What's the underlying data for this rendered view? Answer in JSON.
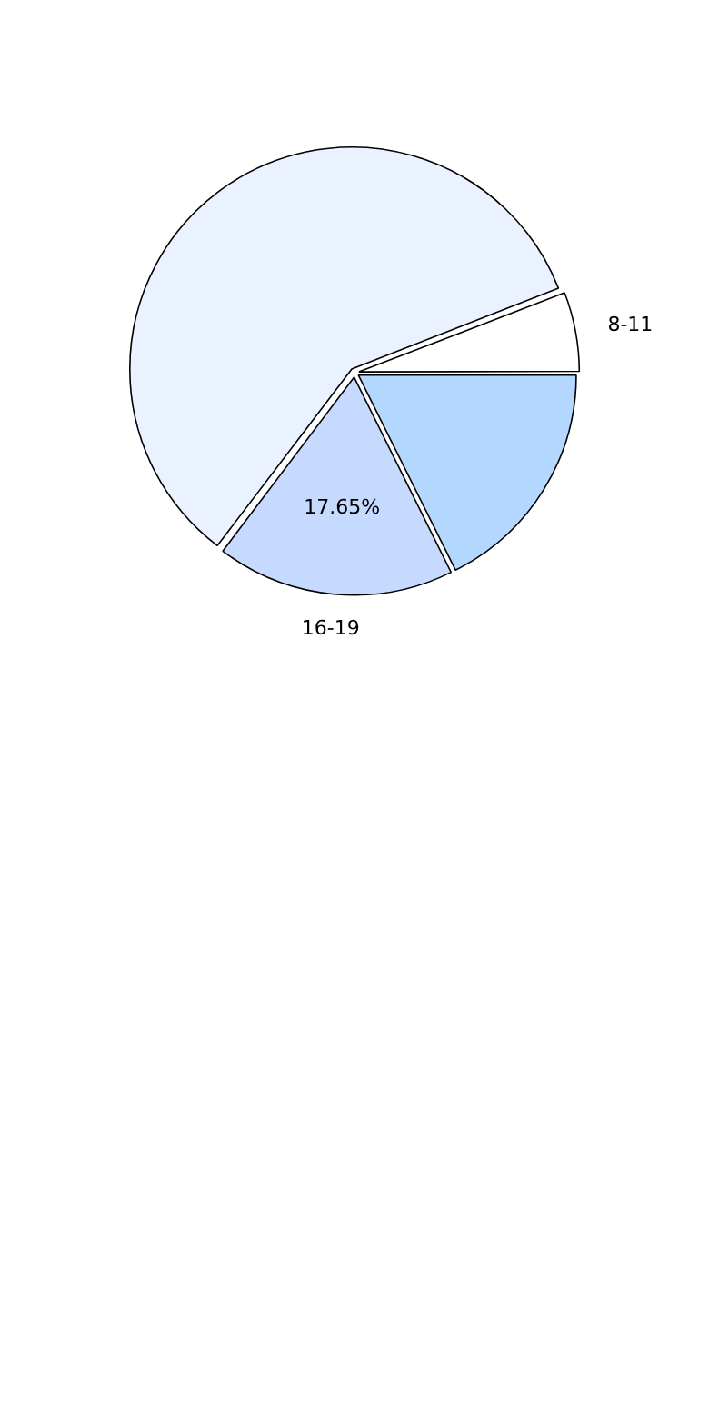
{
  "chart_data": {
    "type": "pie",
    "categories": [
      "16-19",
      null,
      "8-11",
      null
    ],
    "values": [
      17.65,
      58.82,
      5.88,
      17.65
    ],
    "colors": [
      "#c6d9ff",
      "#eaf1ff",
      "#ffffff",
      "#b3d7ff"
    ],
    "value_labels": [
      "17.65%",
      null,
      null,
      null
    ],
    "legend": false
  }
}
